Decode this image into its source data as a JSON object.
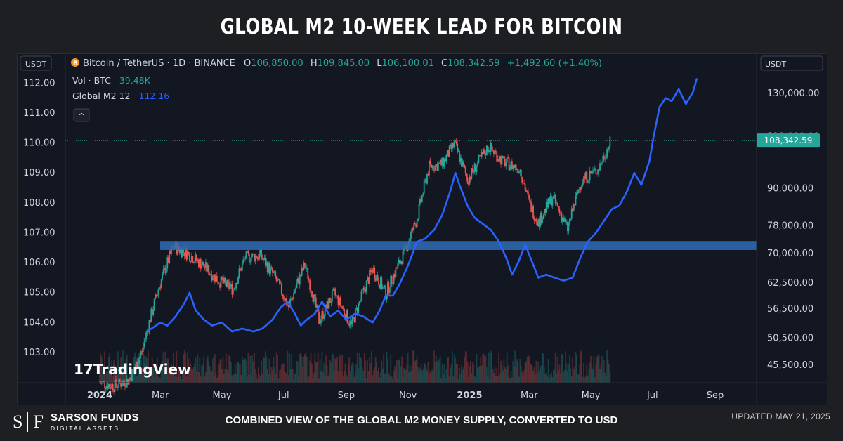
{
  "title": "GLOBAL M2 10-WEEK LEAD FOR BITCOIN",
  "legend": {
    "symbol_line": "Bitcoin / TetherUS · 1D · BINANCE",
    "open_label": "O",
    "open": "106,850.00",
    "high_label": "H",
    "high": "109,845.00",
    "low_label": "L",
    "low": "106,100.01",
    "close_label": "C",
    "close": "108,342.59",
    "change": "+1,492.60 (+1.40%)",
    "vol_label": "Vol · BTC",
    "vol_value": "39.48K",
    "m2_label": "Global M2 12",
    "m2_value": "112.16",
    "collapse_glyph": "^"
  },
  "left_axis": {
    "unit": "USDT",
    "ticks": [
      "112.00",
      "111.00",
      "110.00",
      "109.00",
      "108.00",
      "107.00",
      "106.00",
      "105.00",
      "104.00",
      "103.00"
    ]
  },
  "right_axis": {
    "unit": "USDT",
    "ticks": [
      "130,000.00",
      "110,000.00",
      "90,000.00",
      "78,000.00",
      "70,000.00",
      "62,500.00",
      "56,500.00",
      "50,500.00",
      "45,500.00"
    ],
    "price_tag": "108,342.59"
  },
  "x_axis": {
    "ticks": [
      "2024",
      "Mar",
      "May",
      "Jul",
      "Sep",
      "Nov",
      "2025",
      "Mar",
      "May",
      "Jul",
      "Sep"
    ]
  },
  "watermark": "TradingView",
  "colors": {
    "m2_line": "#2962ff",
    "up": "#26a69a",
    "down": "#ef5350",
    "support_band": "#2f6db5",
    "price_tag": "#26a69a"
  },
  "chart_data": {
    "type": "line",
    "series": [
      {
        "name": "Global M2 12",
        "axis": "left",
        "points": [
          [
            "2024-02-17",
            103.7
          ],
          [
            "2024-03-01",
            104.0
          ],
          [
            "2024-03-08",
            103.9
          ],
          [
            "2024-03-16",
            104.2
          ],
          [
            "2024-03-24",
            104.6
          ],
          [
            "2024-03-30",
            105.0
          ],
          [
            "2024-04-05",
            104.4
          ],
          [
            "2024-04-13",
            104.1
          ],
          [
            "2024-04-21",
            103.9
          ],
          [
            "2024-05-01",
            104.0
          ],
          [
            "2024-05-11",
            103.7
          ],
          [
            "2024-05-21",
            103.8
          ],
          [
            "2024-06-01",
            103.7
          ],
          [
            "2024-06-10",
            103.8
          ],
          [
            "2024-06-20",
            104.1
          ],
          [
            "2024-06-28",
            104.5
          ],
          [
            "2024-07-05",
            104.7
          ],
          [
            "2024-07-12",
            104.3
          ],
          [
            "2024-07-18",
            103.9
          ],
          [
            "2024-07-24",
            104.1
          ],
          [
            "2024-08-01",
            104.3
          ],
          [
            "2024-08-08",
            104.7
          ],
          [
            "2024-08-16",
            104.2
          ],
          [
            "2024-08-24",
            104.4
          ],
          [
            "2024-09-01",
            104.1
          ],
          [
            "2024-09-10",
            104.3
          ],
          [
            "2024-09-18",
            104.2
          ],
          [
            "2024-09-27",
            104.0
          ],
          [
            "2024-10-04",
            104.4
          ],
          [
            "2024-10-10",
            104.9
          ],
          [
            "2024-10-17",
            104.9
          ],
          [
            "2024-10-24",
            105.3
          ],
          [
            "2024-11-01",
            105.9
          ],
          [
            "2024-11-10",
            106.7
          ],
          [
            "2024-11-18",
            106.8
          ],
          [
            "2024-11-27",
            107.1
          ],
          [
            "2024-12-05",
            107.6
          ],
          [
            "2024-12-13",
            108.4
          ],
          [
            "2024-12-18",
            109.0
          ],
          [
            "2024-12-22",
            108.6
          ],
          [
            "2024-12-30",
            107.9
          ],
          [
            "2025-01-06",
            107.5
          ],
          [
            "2025-01-14",
            107.3
          ],
          [
            "2025-01-22",
            107.1
          ],
          [
            "2025-01-30",
            106.7
          ],
          [
            "2025-02-07",
            106.1
          ],
          [
            "2025-02-12",
            105.6
          ],
          [
            "2025-02-18",
            106.0
          ],
          [
            "2025-02-25",
            106.6
          ],
          [
            "2025-03-03",
            106.1
          ],
          [
            "2025-03-10",
            105.5
          ],
          [
            "2025-03-18",
            105.6
          ],
          [
            "2025-03-26",
            105.5
          ],
          [
            "2025-04-04",
            105.4
          ],
          [
            "2025-04-13",
            105.5
          ],
          [
            "2025-04-21",
            106.2
          ],
          [
            "2025-04-28",
            106.7
          ],
          [
            "2025-05-06",
            107.0
          ],
          [
            "2025-05-14",
            107.4
          ],
          [
            "2025-05-22",
            107.8
          ],
          [
            "2025-05-29",
            107.9
          ],
          [
            "2025-06-06",
            108.4
          ],
          [
            "2025-06-13",
            109.0
          ],
          [
            "2025-06-20",
            108.6
          ],
          [
            "2025-06-28",
            109.4
          ],
          [
            "2025-07-02",
            110.2
          ],
          [
            "2025-07-08",
            111.2
          ],
          [
            "2025-07-14",
            111.5
          ],
          [
            "2025-07-20",
            111.4
          ],
          [
            "2025-07-27",
            111.8
          ],
          [
            "2025-08-03",
            111.3
          ],
          [
            "2025-08-10",
            111.7
          ],
          [
            "2025-08-14",
            112.16
          ]
        ]
      },
      {
        "name": "Bitcoin / TetherUS",
        "axis": "right",
        "style": "candles",
        "points": [
          [
            "2024-01-01",
            42500
          ],
          [
            "2024-01-15",
            42000
          ],
          [
            "2024-01-30",
            43000
          ],
          [
            "2024-02-12",
            48000
          ],
          [
            "2024-02-28",
            61000
          ],
          [
            "2024-03-14",
            72000
          ],
          [
            "2024-03-28",
            70000
          ],
          [
            "2024-04-12",
            67000
          ],
          [
            "2024-04-28",
            63000
          ],
          [
            "2024-05-12",
            61000
          ],
          [
            "2024-05-24",
            69000
          ],
          [
            "2024-06-08",
            69500
          ],
          [
            "2024-06-22",
            64000
          ],
          [
            "2024-07-06",
            57000
          ],
          [
            "2024-07-22",
            67000
          ],
          [
            "2024-08-05",
            54000
          ],
          [
            "2024-08-20",
            60000
          ],
          [
            "2024-09-06",
            53000
          ],
          [
            "2024-09-27",
            66000
          ],
          [
            "2024-10-10",
            60000
          ],
          [
            "2024-10-28",
            70000
          ],
          [
            "2024-11-10",
            80000
          ],
          [
            "2024-11-22",
            98000
          ],
          [
            "2024-12-05",
            99000
          ],
          [
            "2024-12-17",
            107000
          ],
          [
            "2024-12-30",
            93000
          ],
          [
            "2025-01-20",
            106000
          ],
          [
            "2025-02-03",
            100000
          ],
          [
            "2025-02-20",
            97000
          ],
          [
            "2025-03-01",
            85000
          ],
          [
            "2025-03-10",
            79000
          ],
          [
            "2025-03-24",
            87000
          ],
          [
            "2025-04-08",
            77000
          ],
          [
            "2025-04-22",
            93000
          ],
          [
            "2025-05-08",
            97000
          ],
          [
            "2025-05-21",
            108342.59
          ]
        ]
      }
    ],
    "y_left_range": [
      102.0,
      113.0
    ],
    "y_right_scale": "log",
    "support_band": [
      71000,
      73500
    ],
    "last_price": 108342.59,
    "grid": false
  }
}
